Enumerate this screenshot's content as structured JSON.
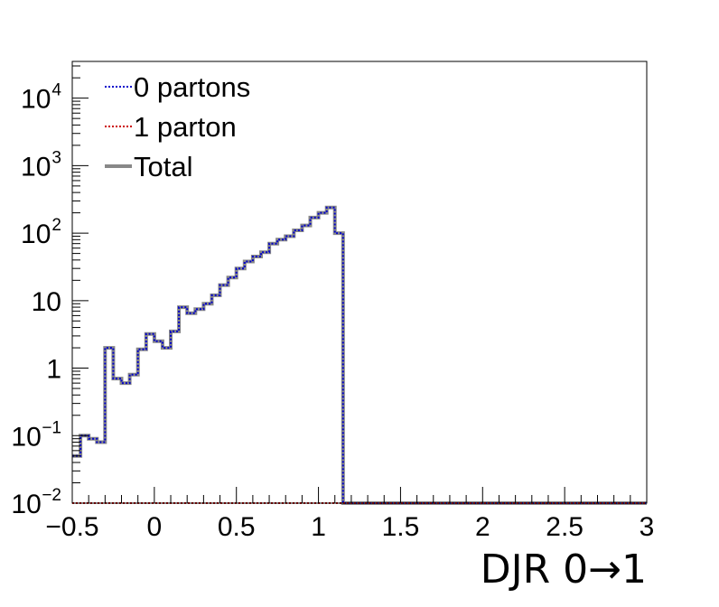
{
  "chart_data": {
    "type": "line",
    "xlabel": "DJR 0→1",
    "ylabel": "",
    "y_scale": "log",
    "xlim": [
      -0.5,
      3.0
    ],
    "ylim": [
      0.01,
      35000
    ],
    "grid": false,
    "legend_placement": "top-left",
    "x_ticks": [
      {
        "value": -0.5,
        "label": "−0.5"
      },
      {
        "value": 0,
        "label": "0"
      },
      {
        "value": 0.5,
        "label": "0.5"
      },
      {
        "value": 1,
        "label": "1"
      },
      {
        "value": 1.5,
        "label": "1.5"
      },
      {
        "value": 2,
        "label": "2"
      },
      {
        "value": 2.5,
        "label": "2.5"
      },
      {
        "value": 3,
        "label": "3"
      }
    ],
    "y_ticks": [
      {
        "value": 0.01,
        "base": "10",
        "exp": "−2"
      },
      {
        "value": 0.1,
        "base": "10",
        "exp": "−1"
      },
      {
        "value": 1,
        "base": "1",
        "exp": ""
      },
      {
        "value": 10,
        "base": "10",
        "exp": ""
      },
      {
        "value": 100,
        "base": "10",
        "exp": "2"
      },
      {
        "value": 1000,
        "base": "10",
        "exp": "3"
      },
      {
        "value": 10000,
        "base": "10",
        "exp": "4"
      }
    ],
    "bin_edges": [
      -0.5,
      -0.45,
      -0.4,
      -0.35,
      -0.3,
      -0.25,
      -0.2,
      -0.15,
      -0.1,
      -0.05,
      0,
      0.05,
      0.1,
      0.15,
      0.2,
      0.25,
      0.3,
      0.35,
      0.4,
      0.45,
      0.5,
      0.55,
      0.6,
      0.65,
      0.7,
      0.75,
      0.8,
      0.85,
      0.9,
      0.95,
      1,
      1.05,
      1.1,
      1.15,
      1.2,
      1.25,
      1.3,
      1.35,
      1.4,
      1.45,
      1.5,
      1.55,
      1.6,
      1.65,
      1.7,
      1.75,
      1.8,
      1.85,
      1.9,
      1.95,
      2,
      2.05,
      2.1,
      2.15,
      2.2,
      2.25,
      2.3,
      2.35,
      2.4,
      2.45,
      2.5,
      2.55,
      2.6,
      2.65,
      2.7,
      2.75,
      2.8,
      2.85,
      2.9,
      2.95,
      3
    ],
    "series": [
      {
        "name": "0 partons",
        "color": "#0000cc",
        "style": "dotted",
        "values": [
          0.05,
          0.1,
          0.09,
          0.08,
          2,
          0.7,
          0.6,
          0.8,
          1.9,
          3.2,
          2.5,
          2,
          3.5,
          8,
          6.5,
          7.5,
          9,
          12,
          17,
          22,
          30,
          38,
          45,
          52,
          70,
          80,
          90,
          110,
          130,
          170,
          200,
          240,
          100,
          0.01,
          0.01,
          0.01,
          0.01,
          0.01,
          0.01,
          0.01,
          0.01,
          0.01,
          0.01,
          0.01,
          0.01,
          0.01,
          0.01,
          0.01,
          0.01,
          0.01,
          0.01,
          0.01,
          0.01,
          0.01,
          0.01,
          0.01,
          0.01,
          0.01,
          0.01,
          0.01,
          0.01,
          0.01,
          0.01,
          0.01,
          0.01,
          0.01,
          0.01,
          0.01,
          0.01,
          0.01
        ]
      },
      {
        "name": "1 parton",
        "color": "#cc0000",
        "style": "dotted",
        "values": [
          0.01,
          0.01,
          0.01,
          0.01,
          0.01,
          0.01,
          0.01,
          0.01,
          0.01,
          0.01,
          0.01,
          0.01,
          0.01,
          0.01,
          0.01,
          0.01,
          0.01,
          0.01,
          0.01,
          0.01,
          0.01,
          0.01,
          0.01,
          0.01,
          0.01,
          0.01,
          0.01,
          0.01,
          0.01,
          0.01,
          0.01,
          0.01,
          0.01,
          0.01,
          0.01,
          0.01,
          0.01,
          0.01,
          0.01,
          0.01,
          0.01,
          0.01,
          0.01,
          0.01,
          0.01,
          0.01,
          0.01,
          0.01,
          0.01,
          0.01,
          0.01,
          0.01,
          0.01,
          0.01,
          0.01,
          0.01,
          0.01,
          0.01,
          0.01,
          0.01,
          0.01,
          0.01,
          0.01,
          0.01,
          0.01,
          0.01,
          0.01,
          0.01,
          0.01,
          0.01
        ]
      },
      {
        "name": "Total",
        "color": "#888888",
        "style": "solid",
        "values": [
          0.05,
          0.1,
          0.09,
          0.08,
          2,
          0.7,
          0.6,
          0.8,
          1.9,
          3.2,
          2.5,
          2,
          3.5,
          8,
          6.5,
          7.5,
          9,
          12,
          17,
          22,
          30,
          38,
          45,
          52,
          70,
          80,
          90,
          110,
          130,
          170,
          200,
          240,
          100,
          0.01,
          0.01,
          0.01,
          0.01,
          0.01,
          0.01,
          0.01,
          0.01,
          0.01,
          0.01,
          0.01,
          0.01,
          0.01,
          0.01,
          0.01,
          0.01,
          0.01,
          0.01,
          0.01,
          0.01,
          0.01,
          0.01,
          0.01,
          0.01,
          0.01,
          0.01,
          0.01,
          0.01,
          0.01,
          0.01,
          0.01,
          0.01,
          0.01,
          0.01,
          0.01,
          0.01,
          0.01
        ]
      }
    ]
  }
}
